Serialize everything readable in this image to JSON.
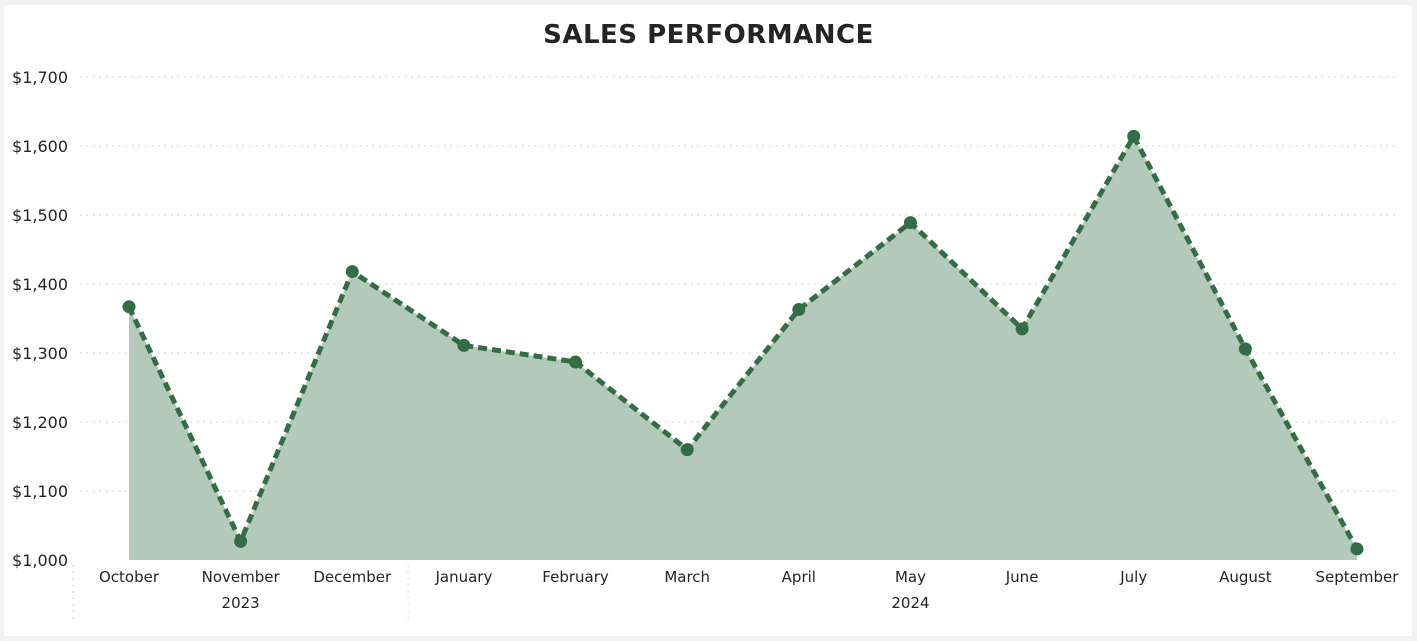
{
  "chart_data": {
    "type": "area",
    "title": "SALES PERFORMANCE",
    "categories": [
      "October",
      "November",
      "December",
      "January",
      "February",
      "March",
      "April",
      "May",
      "June",
      "July",
      "August",
      "September"
    ],
    "groups": [
      {
        "label": "2023",
        "categories": [
          "October",
          "November",
          "December"
        ]
      },
      {
        "label": "2024",
        "categories": [
          "January",
          "February",
          "March",
          "April",
          "May",
          "June",
          "July",
          "August",
          "September"
        ]
      }
    ],
    "series": [
      {
        "values": [
          1367,
          1027,
          1418,
          1311,
          1287,
          1160,
          1363,
          1489,
          1335,
          1614,
          1306,
          1016
        ]
      }
    ],
    "ylim": [
      1000,
      1700
    ],
    "yticks": [
      1000,
      1100,
      1200,
      1300,
      1400,
      1500,
      1600,
      1700
    ],
    "ytick_labels": [
      "$1,000",
      "$1,100",
      "$1,200",
      "$1,300",
      "$1,400",
      "$1,500",
      "$1,600",
      "$1,700"
    ],
    "grid": true,
    "line_color": "#336d46",
    "fill_color": "#b3c9b9",
    "line_style": "dashed",
    "markers": true
  }
}
